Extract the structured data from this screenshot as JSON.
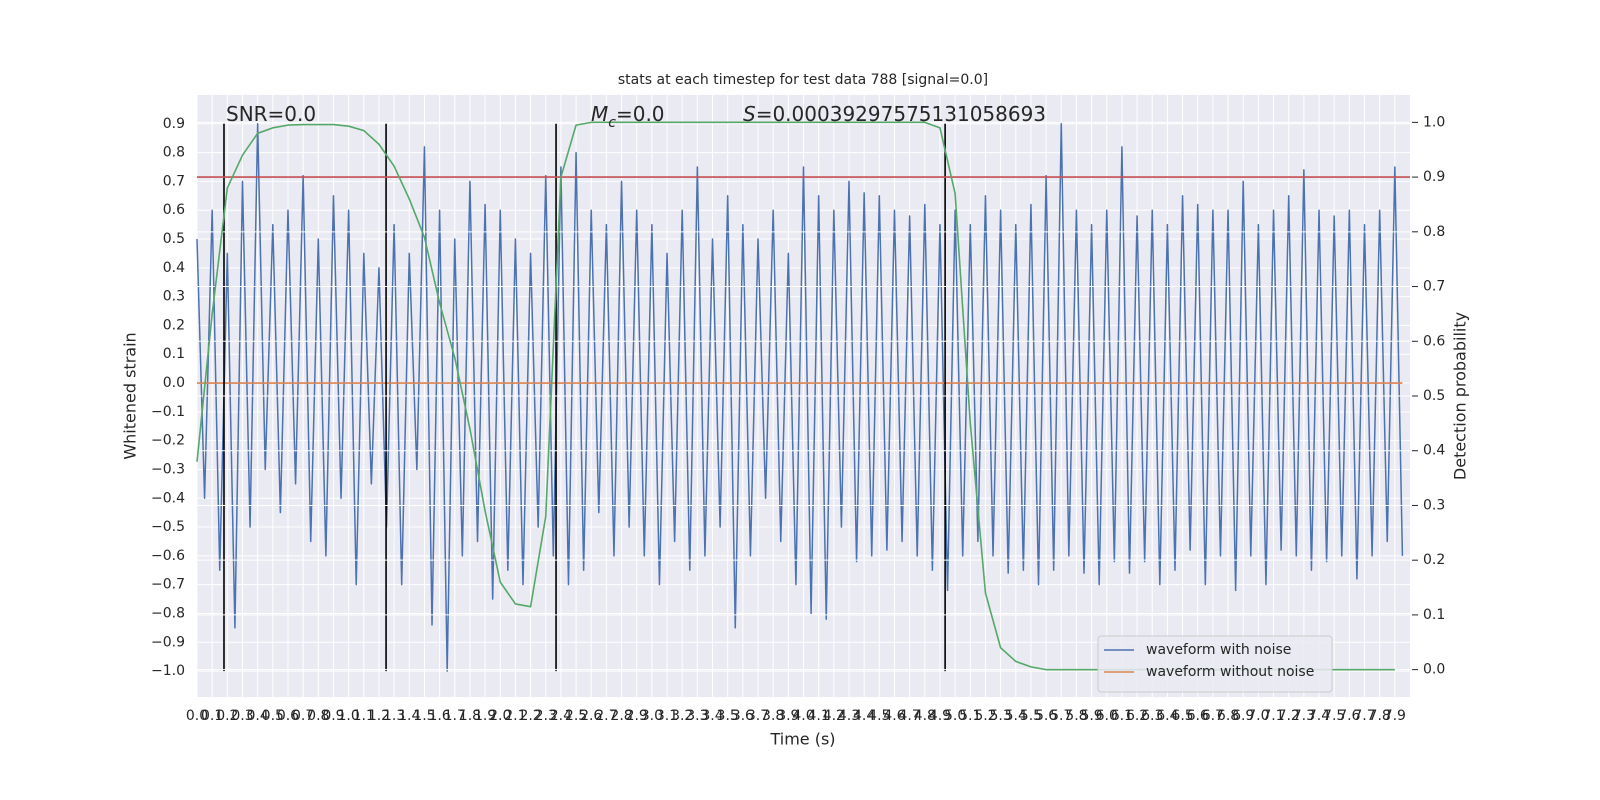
{
  "chart_data": {
    "type": "line",
    "title": "stats at each timestep for test data 788 [signal=0.0]",
    "xlabel": "Time (s)",
    "ylabel": "Whitened strain",
    "y2label": "Detection probability",
    "annotations": [
      {
        "parts": [
          {
            "text": "SNR=0.0"
          }
        ]
      },
      {
        "parts": [
          {
            "text": "M",
            "style": "italic"
          },
          {
            "text": "c",
            "style": "subscript"
          },
          {
            "text": "=0.0"
          }
        ]
      },
      {
        "parts": [
          {
            "text": "S",
            "style": "italic"
          },
          {
            "text": "=0.00039297575131058693"
          }
        ]
      }
    ],
    "xlim": [
      0,
      8
    ],
    "ylim": [
      -1.09,
      1.0
    ],
    "y2lim": [
      -0.05,
      1.05
    ],
    "xticks": [
      {
        "value": 0,
        "label": "0.0"
      },
      0.1,
      0.2,
      0.3,
      0.4,
      0.5,
      0.6,
      0.7,
      0.8,
      0.9,
      {
        "value": 1,
        "label": "1.0"
      },
      1.1,
      1.2,
      1.3,
      1.4,
      1.5,
      1.6,
      1.7,
      1.8,
      1.9,
      {
        "value": 2,
        "label": "2.0"
      },
      2.1,
      2.2,
      2.3,
      2.4,
      2.5,
      2.6,
      2.7,
      2.8,
      2.9,
      {
        "value": 3,
        "label": "3.0"
      },
      3.1,
      3.2,
      3.3,
      3.4,
      3.5,
      3.6,
      3.7,
      3.8,
      3.9,
      {
        "value": 4,
        "label": "4.0"
      },
      4.1,
      4.2,
      4.3,
      4.4,
      4.5,
      4.6,
      4.7,
      4.8,
      4.9,
      {
        "value": 5,
        "label": "5.0"
      },
      5.1,
      5.2,
      5.3,
      5.4,
      5.5,
      5.6,
      5.7,
      5.8,
      5.9,
      {
        "value": 6,
        "label": "6.0"
      },
      6.1,
      6.2,
      6.3,
      6.4,
      6.5,
      6.6,
      6.7,
      6.8,
      6.9,
      {
        "value": 7,
        "label": "7.0"
      },
      7.1,
      7.2,
      7.3,
      7.4,
      7.5,
      7.6,
      7.7,
      7.8,
      7.9
    ],
    "yticks": [
      0.9,
      0.8,
      0.7,
      0.6,
      0.5,
      0.4,
      0.3,
      0.2,
      0.1,
      {
        "value": 0,
        "label": "0.0"
      },
      {
        "value": -0.1,
        "label": "−0.1"
      },
      {
        "value": -0.2,
        "label": "−0.2"
      },
      {
        "value": -0.3,
        "label": "−0.3"
      },
      {
        "value": -0.4,
        "label": "−0.4"
      },
      {
        "value": -0.5,
        "label": "−0.5"
      },
      {
        "value": -0.6,
        "label": "−0.6"
      },
      {
        "value": -0.7,
        "label": "−0.7"
      },
      {
        "value": -0.8,
        "label": "−0.8"
      },
      {
        "value": -0.9,
        "label": "−0.9"
      },
      {
        "value": -1.0,
        "label": "−1.0"
      }
    ],
    "y2ticks": [
      {
        "value": 0,
        "label": "0.0"
      },
      0.1,
      0.2,
      0.3,
      0.4,
      0.5,
      0.6,
      0.7,
      0.8,
      0.9,
      {
        "value": 1,
        "label": "1.0"
      }
    ],
    "grid": true,
    "legend": "lower right",
    "series": [
      {
        "name": "waveform with noise",
        "color": "#4c72b0",
        "x": [
          0,
          0.05,
          0.1,
          0.15,
          0.2,
          0.25,
          0.3,
          0.35,
          0.4,
          0.45,
          0.5,
          0.55,
          0.6,
          0.65,
          0.7,
          0.75,
          0.8,
          0.85,
          0.9,
          0.95,
          1,
          1.05,
          1.1,
          1.15,
          1.2,
          1.25,
          1.3,
          1.35,
          1.4,
          1.45,
          1.5,
          1.55,
          1.6,
          1.65,
          1.7,
          1.75,
          1.8,
          1.85,
          1.9,
          1.95,
          2,
          2.05,
          2.1,
          2.15,
          2.2,
          2.25,
          2.3,
          2.35,
          2.4,
          2.45,
          2.5,
          2.55,
          2.6,
          2.65,
          2.7,
          2.75,
          2.8,
          2.85,
          2.9,
          2.95,
          3,
          3.05,
          3.1,
          3.15,
          3.2,
          3.25,
          3.3,
          3.35,
          3.4,
          3.45,
          3.5,
          3.55,
          3.6,
          3.65,
          3.7,
          3.75,
          3.8,
          3.85,
          3.9,
          3.95,
          4,
          4.05,
          4.1,
          4.15,
          4.2,
          4.25,
          4.3,
          4.35,
          4.4,
          4.45,
          4.5,
          4.55,
          4.6,
          4.65,
          4.7,
          4.75,
          4.8,
          4.85,
          4.9,
          4.95,
          5,
          5.05,
          5.1,
          5.15,
          5.2,
          5.25,
          5.3,
          5.35,
          5.4,
          5.45,
          5.5,
          5.55,
          5.6,
          5.65,
          5.7,
          5.75,
          5.8,
          5.85,
          5.9,
          5.95,
          6,
          6.05,
          6.1,
          6.15,
          6.2,
          6.25,
          6.3,
          6.35,
          6.4,
          6.45,
          6.5,
          6.55,
          6.6,
          6.65,
          6.7,
          6.75,
          6.8,
          6.85,
          6.9,
          6.95,
          7,
          7.05,
          7.1,
          7.15,
          7.2,
          7.25,
          7.3,
          7.35,
          7.4,
          7.45,
          7.5,
          7.55,
          7.6,
          7.65,
          7.7,
          7.75,
          7.8,
          7.85,
          7.9,
          7.95
        ],
        "values": [
          0.5,
          -0.4,
          0.6,
          -0.65,
          0.45,
          -0.85,
          0.7,
          -0.5,
          0.9,
          -0.3,
          0.55,
          -0.45,
          0.6,
          -0.35,
          0.72,
          -0.55,
          0.5,
          -0.6,
          0.65,
          -0.4,
          0.6,
          -0.7,
          0.45,
          -0.35,
          0.4,
          -0.5,
          0.55,
          -0.7,
          0.45,
          -0.3,
          0.82,
          -0.84,
          0.6,
          -1.0,
          0.5,
          -0.6,
          0.7,
          -0.55,
          0.62,
          -0.75,
          0.6,
          -0.65,
          0.5,
          -0.7,
          0.45,
          -0.5,
          0.72,
          -0.6,
          0.75,
          -0.7,
          0.8,
          -0.65,
          0.6,
          -0.45,
          0.55,
          -0.6,
          0.7,
          -0.5,
          0.6,
          -0.6,
          0.55,
          -0.7,
          0.45,
          -0.55,
          0.6,
          -0.65,
          0.75,
          -0.6,
          0.5,
          -0.5,
          0.65,
          -0.85,
          0.55,
          -0.6,
          0.5,
          -0.4,
          0.6,
          -0.55,
          0.45,
          -0.7,
          0.75,
          -0.8,
          0.65,
          -0.82,
          0.6,
          -0.5,
          0.7,
          -0.62,
          0.66,
          -0.6,
          0.65,
          -0.58,
          0.6,
          -0.55,
          0.58,
          -0.6,
          0.62,
          -0.65,
          0.55,
          -0.72,
          0.6,
          -0.6,
          0.55,
          -0.55,
          0.65,
          -0.6,
          0.6,
          -0.66,
          0.55,
          -0.65,
          0.62,
          -0.7,
          0.72,
          -0.65,
          0.9,
          -0.6,
          0.6,
          -0.66,
          0.55,
          -0.7,
          0.6,
          -0.62,
          0.82,
          -0.66,
          0.58,
          -0.62,
          0.6,
          -0.7,
          0.55,
          -0.65,
          0.65,
          -0.58,
          0.62,
          -0.7,
          0.6,
          -0.6,
          0.6,
          -0.72,
          0.7,
          -0.6,
          0.55,
          -0.7,
          0.6,
          -0.58,
          0.65,
          -0.6,
          0.74,
          -0.65,
          0.6,
          -0.62,
          0.58,
          -0.6,
          0.6,
          -0.68,
          0.55,
          -0.6,
          0.6,
          -0.55,
          0.75,
          -0.6
        ]
      },
      {
        "name": "waveform without noise",
        "color": "#dd8452",
        "x": [
          0,
          7.95
        ],
        "values": [
          0,
          0
        ]
      },
      {
        "color": "#55a868",
        "axis": "y2",
        "x": [
          0,
          0.1,
          0.2,
          0.3,
          0.4,
          0.5,
          0.6,
          0.7,
          0.8,
          0.9,
          1,
          1.1,
          1.2,
          1.3,
          1.4,
          1.5,
          1.6,
          1.7,
          1.8,
          1.9,
          2,
          2.1,
          2.2,
          2.3,
          2.4,
          2.5,
          2.6,
          2.7,
          2.8,
          2.9,
          3,
          3.1,
          3.2,
          3.3,
          3.4,
          3.5,
          3.6,
          3.7,
          3.8,
          3.9,
          4,
          4.1,
          4.2,
          4.3,
          4.4,
          4.5,
          4.6,
          4.7,
          4.8,
          4.9,
          5,
          5.1,
          5.2,
          5.3,
          5.4,
          5.5,
          5.6,
          5.7,
          5.8,
          5.9,
          6,
          6.1,
          6.2,
          6.3,
          6.4,
          6.5,
          6.6,
          6.7,
          6.8,
          6.9,
          7,
          7.1,
          7.2,
          7.3,
          7.4,
          7.5,
          7.6,
          7.7,
          7.8,
          7.9
        ],
        "values": [
          0.38,
          0.65,
          0.88,
          0.94,
          0.98,
          0.99,
          0.995,
          0.996,
          0.996,
          0.996,
          0.993,
          0.985,
          0.96,
          0.92,
          0.86,
          0.79,
          0.67,
          0.57,
          0.44,
          0.29,
          0.16,
          0.12,
          0.115,
          0.28,
          0.9,
          0.995,
          1.0,
          1.0,
          1.0,
          1.0,
          1.0,
          1.0,
          1.0,
          1.0,
          1.0,
          1.0,
          1.0,
          1.0,
          1.0,
          1.0,
          1.0,
          1.0,
          1.0,
          1.0,
          1.0,
          1.0,
          1.0,
          1.0,
          1.0,
          0.99,
          0.87,
          0.45,
          0.14,
          0.04,
          0.015,
          0.005,
          0.0,
          0.0,
          0.0,
          0.0,
          0.0,
          0.0,
          0.0,
          0.0,
          0.0,
          0.0,
          0.0,
          0.0,
          0.0,
          0.0,
          0.0,
          0.0,
          0.0,
          0.0,
          0.0,
          0.0,
          0.0,
          0.0,
          0.0,
          0.0
        ]
      }
    ],
    "hlines": [
      {
        "value": 0.9,
        "axis": "y2",
        "color": "#c44e52"
      }
    ],
    "vlines": [
      0.178,
      1.247,
      2.368,
      4.934
    ]
  }
}
